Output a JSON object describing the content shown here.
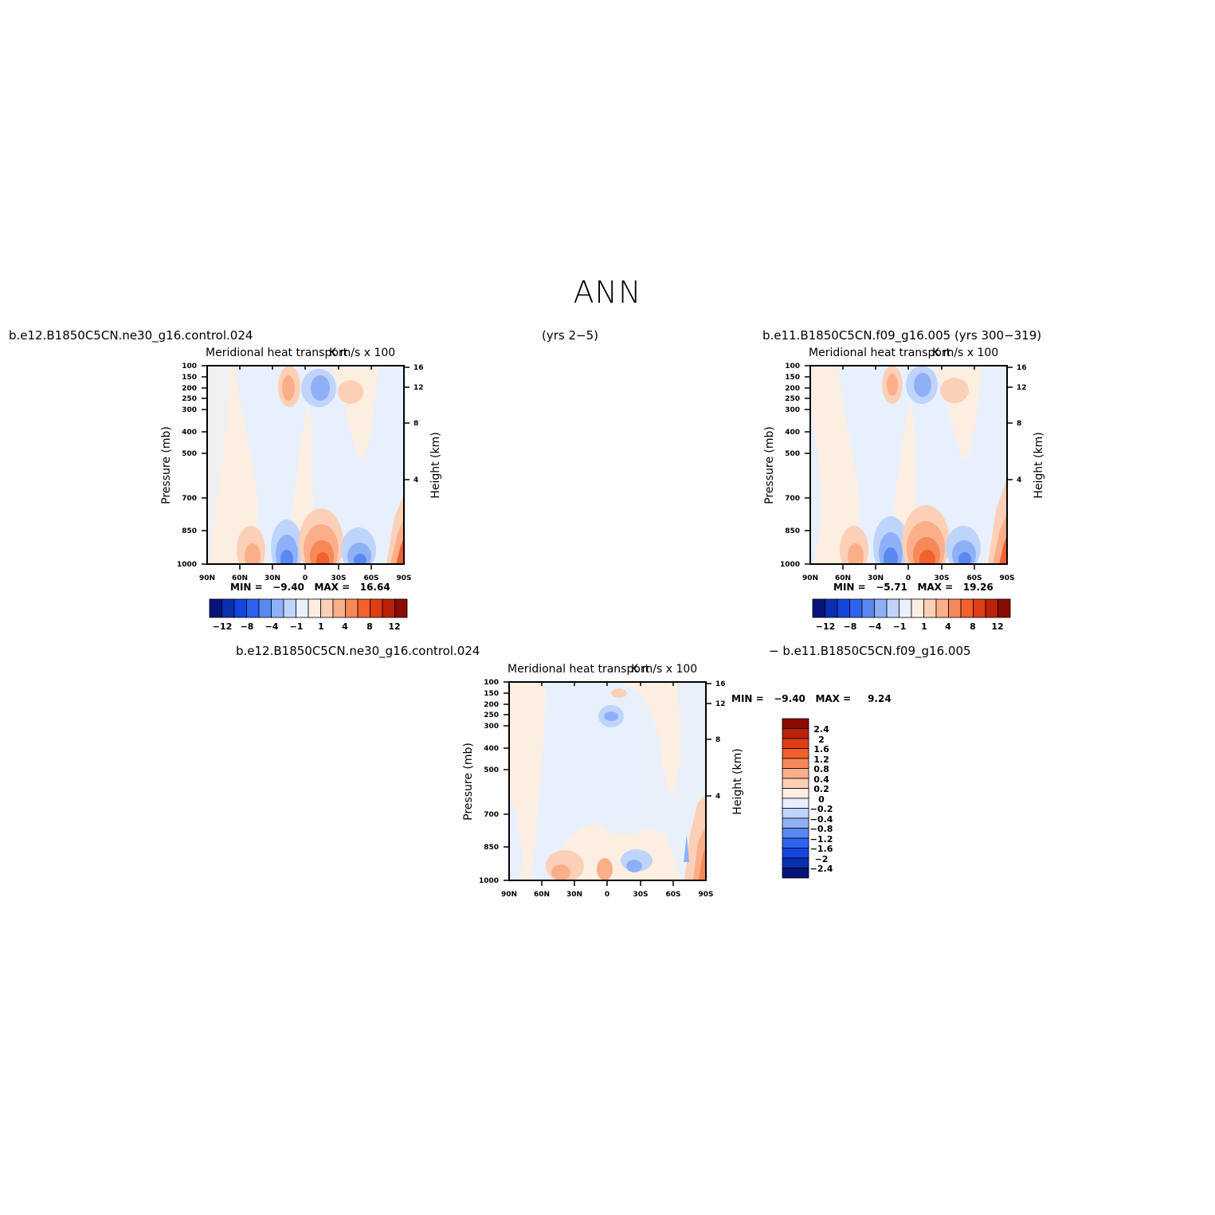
{
  "page_title": "ANN",
  "top_labels": {
    "case1": "b.e12.B1850C5CN.ne30_g16.control.024",
    "years1": "(yrs 2−5)",
    "case2": "b.e11.B1850C5CN.f09_g16.005 (yrs 300−319)"
  },
  "diff_labels": {
    "left": "b.e12.B1850C5CN.ne30_g16.control.024",
    "right": "− b.e11.B1850C5CN.f09_g16.005"
  },
  "panels": [
    {
      "title_left": "Meridional heat transport",
      "title_right": "K m/s x 100",
      "min_label": "MIN =",
      "min_value": "−9.40",
      "max_label": "MAX =",
      "max_value": "16.64"
    },
    {
      "title_left": "Meridional heat transport",
      "title_right": "K m/s x 100",
      "min_label": "MIN =",
      "min_value": "−5.71",
      "max_label": "MAX =",
      "max_value": "19.26"
    },
    {
      "title_left": "Meridional heat transport",
      "title_right": "K m/s x 100",
      "min_label": "MIN =",
      "min_value": "−9.40",
      "max_label": "MAX =",
      "max_value": "9.24"
    }
  ],
  "axes": {
    "ylabel_left": "Pressure (mb)",
    "ylabel_right": "Height (km)",
    "pressure_ticks": [
      "100",
      "150",
      "200",
      "250",
      "300",
      "400",
      "500",
      "700",
      "850",
      "1000"
    ],
    "height_ticks": [
      "16",
      "12",
      "8",
      "4"
    ],
    "lat_ticks": [
      "90N",
      "60N",
      "30N",
      "0",
      "30S",
      "60S",
      "90S"
    ]
  },
  "colorbar_main": {
    "labels": [
      "−12",
      "−8",
      "−4",
      "−1",
      "1",
      "4",
      "8",
      "12"
    ],
    "colors": [
      "#08147a",
      "#0a2fb0",
      "#1446de",
      "#2f62f0",
      "#5a88f2",
      "#8eb0f6",
      "#bfd4fa",
      "#e8f0fd",
      "#fdeee2",
      "#fcd0b6",
      "#faae8a",
      "#f78858",
      "#f1602d",
      "#de3e14",
      "#bb2208",
      "#8a0c04"
    ]
  },
  "colorbar_diff": {
    "labels": [
      "2.4",
      "2",
      "1.6",
      "1.2",
      "0.8",
      "0.4",
      "0.2",
      "0",
      "−0.2",
      "−0.4",
      "−0.8",
      "−1.2",
      "−1.6",
      "−2",
      "−2.4"
    ],
    "colors": [
      "#8a0c04",
      "#bb2208",
      "#de3e14",
      "#f1602d",
      "#f78858",
      "#faae8a",
      "#fcd0b6",
      "#fdeee2",
      "#e8f0fd",
      "#bfd4fa",
      "#8eb0f6",
      "#5a88f2",
      "#2f62f0",
      "#1446de",
      "#0a2fb0",
      "#08147a"
    ]
  },
  "chart_data": [
    {
      "type": "heatmap",
      "title": "Meridional heat transport  K m/s x 100",
      "xlabel": "",
      "ylabel": "Pressure (mb)",
      "ylabel_right": "Height (km)",
      "x_ticks": [
        "90N",
        "60N",
        "30N",
        "0",
        "30S",
        "60S",
        "90S"
      ],
      "y_ticks_mb": [
        100,
        150,
        200,
        250,
        300,
        400,
        500,
        700,
        850,
        1000
      ],
      "min": -9.4,
      "max": 16.64,
      "contour_levels": [
        -12,
        -10,
        -8,
        -6,
        -4,
        -2,
        -1,
        0,
        1,
        2,
        4,
        6,
        8,
        10,
        12
      ]
    },
    {
      "type": "heatmap",
      "title": "Meridional heat transport  K m/s x 100",
      "xlabel": "",
      "ylabel": "Pressure (mb)",
      "ylabel_right": "Height (km)",
      "x_ticks": [
        "90N",
        "60N",
        "30N",
        "0",
        "30S",
        "60S",
        "90S"
      ],
      "y_ticks_mb": [
        100,
        150,
        200,
        250,
        300,
        400,
        500,
        700,
        850,
        1000
      ],
      "min": -5.71,
      "max": 19.26,
      "contour_levels": [
        -12,
        -10,
        -8,
        -6,
        -4,
        -2,
        -1,
        0,
        1,
        2,
        4,
        6,
        8,
        10,
        12
      ]
    },
    {
      "type": "heatmap",
      "title": "Meridional heat transport  K m/s x 100",
      "xlabel": "",
      "ylabel": "Pressure (mb)",
      "ylabel_right": "Height (km)",
      "x_ticks": [
        "90N",
        "60N",
        "30N",
        "0",
        "30S",
        "60S",
        "90S"
      ],
      "y_ticks_mb": [
        100,
        150,
        200,
        250,
        300,
        400,
        500,
        700,
        850,
        1000
      ],
      "min": -9.4,
      "max": 9.24,
      "contour_levels": [
        -2.4,
        -2,
        -1.6,
        -1.2,
        -0.8,
        -0.4,
        -0.2,
        0,
        0.2,
        0.4,
        0.8,
        1.2,
        1.6,
        2,
        2.4
      ]
    }
  ]
}
